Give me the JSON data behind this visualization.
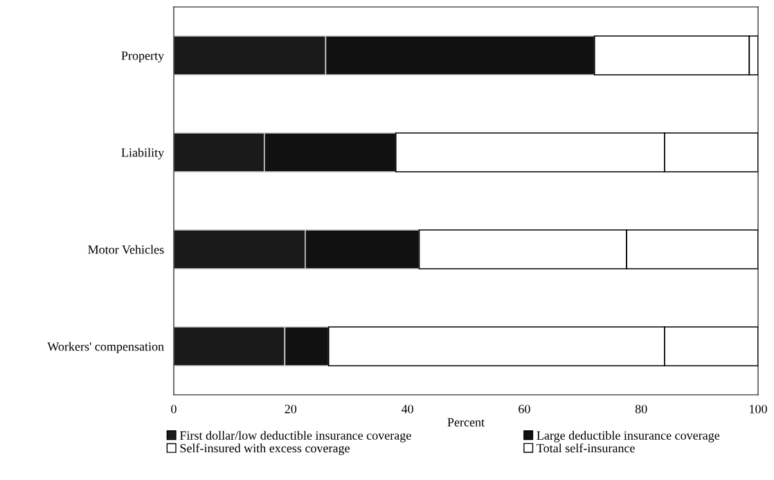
{
  "chart_data": {
    "type": "bar",
    "orientation": "horizontal",
    "stacked": true,
    "xlabel": "Percent",
    "categories": [
      "Property",
      "Liability",
      "Motor Vehicles",
      "Workers' compensation"
    ],
    "series": [
      {
        "name": "First dollar/low deductible insurance coverage",
        "color": "#1a1a1a",
        "values": [
          26,
          15.5,
          22.5,
          19
        ]
      },
      {
        "name": "Large deductible insurance coverage",
        "color": "#111111",
        "values": [
          46,
          22.5,
          19.5,
          7.5
        ]
      },
      {
        "name": "Self-insured with excess coverage",
        "color": "#ffffff",
        "values": [
          26.5,
          46,
          35.5,
          57.5
        ]
      },
      {
        "name": "Total self-insurance",
        "color": "#ffffff",
        "values": [
          1.5,
          16,
          22.5,
          16
        ]
      }
    ],
    "xlim": [
      0,
      100
    ],
    "xticks": [
      0,
      20,
      40,
      60,
      80,
      100
    ],
    "grid": false,
    "legend": "bottom"
  }
}
